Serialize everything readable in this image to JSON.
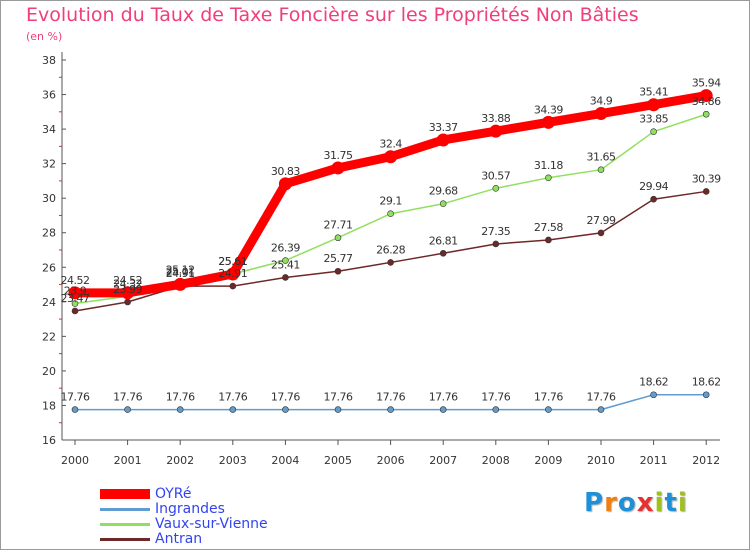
{
  "title": "Evolution du Taux de Taxe Foncière sur les Propriétés Non Bâties",
  "unit": "(en %)",
  "logo": {
    "text": "Proxiti",
    "letters": [
      "P",
      "r",
      "o",
      "x",
      "i",
      "t",
      "i"
    ],
    "colors": [
      "#1e90d8",
      "#f07f10",
      "#1e90d8",
      "#e83030",
      "#a0c020",
      "#1e90d8",
      "#a0c020"
    ]
  },
  "chart_data": {
    "type": "line",
    "title": "Evolution du Taux de Taxe Foncière sur les Propriétés Non Bâties",
    "ylabel": "(en %)",
    "xlabel": "",
    "ylim": [
      16,
      38
    ],
    "yticks": [
      16,
      18,
      20,
      22,
      24,
      26,
      28,
      30,
      32,
      34,
      36,
      38
    ],
    "categories": [
      "2000",
      "2001",
      "2002",
      "2003",
      "2004",
      "2005",
      "2006",
      "2007",
      "2008",
      "2009",
      "2010",
      "2011",
      "2012"
    ],
    "series": [
      {
        "name": "OYRé",
        "color": "#ff0000",
        "values": [
          24.52,
          24.52,
          25.01,
          25.61,
          30.83,
          31.75,
          32.4,
          33.37,
          33.88,
          34.39,
          34.9,
          35.41,
          35.94
        ],
        "labels": [
          "24.52",
          "24.52",
          "25.01",
          "25.61",
          "30.83",
          "31.75",
          "32.4",
          "33.37",
          "33.88",
          "34.39",
          "34.9",
          "35.41",
          "35.94"
        ]
      },
      {
        "name": "Ingrandes",
        "color": "#5f9ccf",
        "values": [
          17.76,
          17.76,
          17.76,
          17.76,
          17.76,
          17.76,
          17.76,
          17.76,
          17.76,
          17.76,
          17.76,
          18.62,
          18.62
        ],
        "labels": [
          "17.76",
          "17.76",
          "17.76",
          "17.76",
          "17.76",
          "17.76",
          "17.76",
          "17.76",
          "17.76",
          "17.76",
          "17.76",
          "18.62",
          "18.62"
        ]
      },
      {
        "name": "Vaux-sur-Vienne",
        "color": "#90e060",
        "values": [
          23.9,
          24.32,
          25.12,
          25.61,
          26.39,
          27.71,
          29.1,
          29.68,
          30.57,
          31.18,
          31.65,
          33.85,
          34.86
        ],
        "labels": [
          "23.9",
          "24.32",
          "25.12",
          "25.61",
          "26.39",
          "27.71",
          "29.1",
          "29.68",
          "30.57",
          "31.18",
          "31.65",
          "33.85",
          "34.86"
        ]
      },
      {
        "name": "Antran",
        "color": "#6e2828",
        "values": [
          23.47,
          23.99,
          24.91,
          24.91,
          25.41,
          25.77,
          26.28,
          26.81,
          27.35,
          27.58,
          27.99,
          29.94,
          30.39
        ],
        "labels": [
          "23.47",
          "23.99",
          "24.91",
          "24.91",
          "25.41",
          "25.77",
          "26.28",
          "26.81",
          "27.35",
          "27.58",
          "27.99",
          "29.94",
          "30.39"
        ]
      }
    ],
    "legend_position": "bottom-left",
    "grid": false
  }
}
